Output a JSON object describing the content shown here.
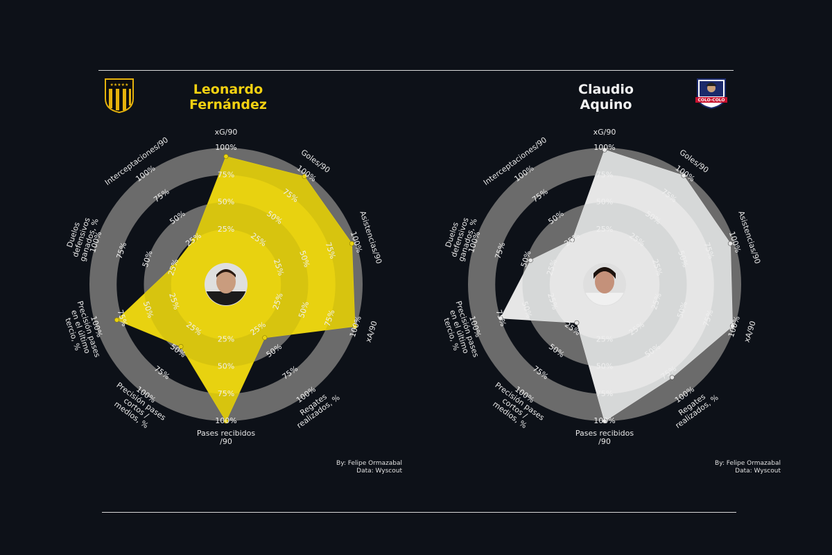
{
  "credit": {
    "by": "By: Felipe Ormazabal",
    "source": "Data: Wyscout"
  },
  "chart_data": [
    {
      "type": "radar",
      "title": "Leonardo Fernández",
      "title_lines": [
        "Leonardo",
        "Fernández"
      ],
      "color": "#e8d210",
      "crest_icon": "penarol-crest-icon",
      "axes": [
        {
          "label": [
            "xG/90"
          ],
          "ring_labels": [
            "25%",
            "50%",
            "75%",
            "100%"
          ]
        },
        {
          "label": [
            "Goles/90"
          ],
          "ring_labels": [
            "25%",
            "50%",
            "75%",
            "100%"
          ]
        },
        {
          "label": [
            "Asistencias/90"
          ],
          "ring_labels": [
            "25%",
            "50%",
            "75%",
            "100%"
          ]
        },
        {
          "label": [
            "xA/90"
          ],
          "ring_labels": [
            "25%",
            "50%",
            "75%",
            "100%"
          ]
        },
        {
          "label": [
            "Regates",
            "realizados, %"
          ],
          "ring_labels": [
            "25%",
            "50%",
            "75%",
            "100%"
          ]
        },
        {
          "label": [
            "Pases recibidos",
            "/90"
          ],
          "ring_labels": [
            "25%",
            "50%",
            "75%",
            "100%"
          ]
        },
        {
          "label": [
            "Precisión pases",
            "cortos /",
            "medios, %"
          ],
          "ring_labels": [
            "25%",
            "50%",
            "75%",
            "100%"
          ]
        },
        {
          "label": [
            "Precisión pases",
            "en el último",
            "tercio, %"
          ],
          "ring_labels": [
            "25%",
            "50%",
            "75%",
            "100%"
          ]
        },
        {
          "label": [
            "Duelos",
            "defensivos",
            "ganados, %"
          ],
          "ring_labels": [
            "25%",
            "50%",
            "75%",
            "100%"
          ]
        },
        {
          "label": [
            "Interceptaciones/90"
          ],
          "ring_labels": [
            "25%",
            "50%",
            "75%",
            "100%"
          ]
        }
      ],
      "values": [
        0.92,
        0.97,
        0.96,
        0.99,
        0.35,
        1.0,
        0.45,
        0.8,
        0.26,
        0.25
      ],
      "rlim": [
        0,
        1
      ]
    },
    {
      "type": "radar",
      "title": "Claudio Aquino",
      "title_lines": [
        "Claudio",
        "Aquino"
      ],
      "color": "#e6e6e6",
      "crest_icon": "colo-colo-crest-icon",
      "axes": [
        {
          "label": [
            "xG/90"
          ],
          "ring_labels": [
            "25%",
            "50%",
            "75%",
            "100%"
          ]
        },
        {
          "label": [
            "Goles/90"
          ],
          "ring_labels": [
            "25%",
            "50%",
            "75%",
            "100%"
          ]
        },
        {
          "label": [
            "Asistencias/90"
          ],
          "ring_labels": [
            "25%",
            "50%",
            "75%",
            "100%"
          ]
        },
        {
          "label": [
            "xA/90"
          ],
          "ring_labels": [
            "25%",
            "50%",
            "75%",
            "100%"
          ]
        },
        {
          "label": [
            "Regates",
            "realizados, %"
          ],
          "ring_labels": [
            "25%",
            "50%",
            "75%",
            "100%"
          ]
        },
        {
          "label": [
            "Pases recibidos",
            "/90"
          ],
          "ring_labels": [
            "25%",
            "50%",
            "75%",
            "100%"
          ]
        },
        {
          "label": [
            "Precisión pases",
            "cortos /",
            "medios, %"
          ],
          "ring_labels": [
            "25%",
            "50%",
            "75%",
            "100%"
          ]
        },
        {
          "label": [
            "Precisión pases",
            "en el último",
            "tercio, %"
          ],
          "ring_labels": [
            "25%",
            "50%",
            "75%",
            "100%"
          ]
        },
        {
          "label": [
            "Duelos",
            "defensivos",
            "ganados, %"
          ],
          "ring_labels": [
            "25%",
            "50%",
            "75%",
            "100%"
          ]
        },
        {
          "label": [
            "Interceptaciones/90"
          ],
          "ring_labels": [
            "25%",
            "50%",
            "75%",
            "100%"
          ]
        }
      ],
      "values": [
        0.98,
        0.98,
        0.96,
        0.98,
        0.8,
        1.0,
        0.18,
        0.75,
        0.46,
        0.25
      ],
      "rlim": [
        0,
        1
      ]
    }
  ]
}
